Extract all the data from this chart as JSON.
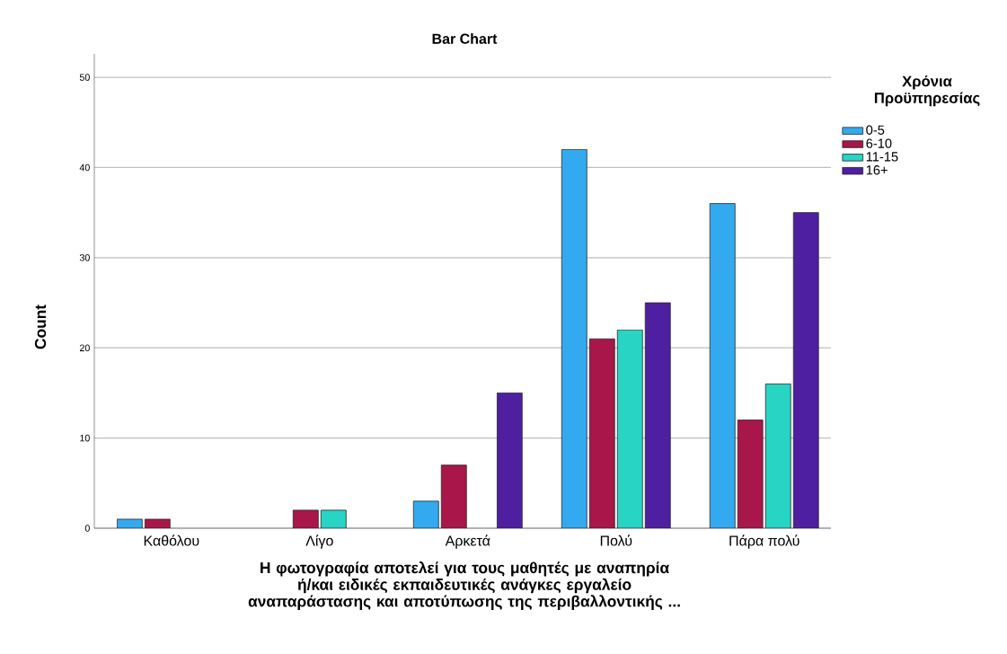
{
  "chart_data": {
    "type": "bar",
    "title": "Bar Chart",
    "xlabel": "Η φωτογραφία αποτελεί για τους μαθητές με αναπηρία ή/και ειδικές εκπαιδευτικές ανάγκες εργαλείο αναπαράστασης και αποτύπωσης της περιβαλλοντικής ...",
    "ylabel": "Count",
    "legend_title": "Χρόνια Προϋπηρεσίας",
    "categories": [
      "Καθόλου",
      "Λίγο",
      "Αρκετά",
      "Πολύ",
      "Πάρα πολύ"
    ],
    "series": [
      {
        "name": "0-5",
        "color": "#33aaf0",
        "values": [
          1,
          null,
          3,
          42,
          36
        ]
      },
      {
        "name": "6-10",
        "color": "#a8164a",
        "values": [
          1,
          2,
          7,
          21,
          12
        ]
      },
      {
        "name": "11-15",
        "color": "#28d4c4",
        "values": [
          null,
          2,
          null,
          22,
          16
        ]
      },
      {
        "name": "16+",
        "color": "#4e1fa0",
        "values": [
          null,
          null,
          15,
          25,
          35
        ]
      }
    ],
    "ylim": [
      0,
      52.6
    ],
    "yticks": [
      0,
      10,
      20,
      30,
      40,
      50
    ],
    "grid": "y",
    "legend": "top right"
  }
}
